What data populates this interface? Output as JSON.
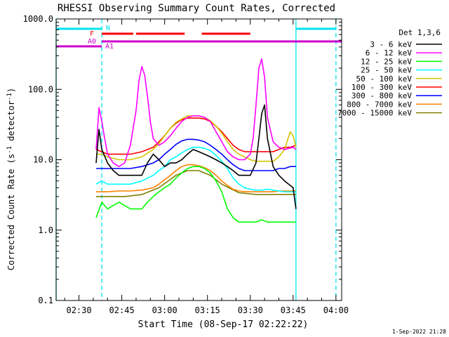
{
  "chart_data": {
    "type": "line",
    "title": "RHESSI Observing Summary Count Rates, Corrected",
    "xlabel": "Start Time (08-Sep-17 02:22:22)",
    "ylabel": "Corrected Count Rate (s",
    "ylabel_sup1": "-1",
    "ylabel_mid": " detector",
    "ylabel_sup2": "-1",
    "ylabel_end": ")",
    "y_scale": "log",
    "ylim": [
      0.1,
      1000
    ],
    "xlim_minutes": [
      142,
      242
    ],
    "x_ticks": [
      {
        "label": "02:30",
        "minute": 150
      },
      {
        "label": "02:45",
        "minute": 165
      },
      {
        "label": "03:00",
        "minute": 180
      },
      {
        "label": "03:15",
        "minute": 195
      },
      {
        "label": "03:30",
        "minute": 210
      },
      {
        "label": "03:45",
        "minute": 225
      },
      {
        "label": "04:00",
        "minute": 240
      }
    ],
    "y_ticks": [
      {
        "label": "0.1",
        "value": 0.1
      },
      {
        "label": "1.0",
        "value": 1
      },
      {
        "label": "10.0",
        "value": 10
      },
      {
        "label": "100.0",
        "value": 100
      },
      {
        "label": "1000.0",
        "value": 1000
      }
    ],
    "legend_title": "Det 1,3,6",
    "footer": "1-Sep-2022 21:28",
    "series": [
      {
        "name": "3 - 6 keV",
        "color": "#000000",
        "x": [
          156,
          157,
          158,
          160,
          162,
          164,
          166,
          168,
          170,
          172,
          174,
          176,
          178,
          180,
          182,
          184,
          186,
          188,
          190,
          192,
          194,
          196,
          198,
          200,
          202,
          204,
          206,
          208,
          210,
          212,
          213,
          214,
          215,
          216,
          218,
          220,
          222,
          225,
          226
        ],
        "y": [
          9,
          27,
          14,
          9,
          7,
          6,
          6,
          6,
          6,
          6,
          9,
          12,
          10,
          8,
          9,
          9,
          10,
          12,
          14,
          13,
          12,
          11,
          10,
          9,
          8,
          7,
          6,
          6,
          6,
          9,
          20,
          45,
          60,
          20,
          8,
          6,
          5,
          4,
          2
        ]
      },
      {
        "name": "6 - 12 keV",
        "color": "#ff00ff",
        "x": [
          156,
          157,
          158,
          159,
          160,
          162,
          164,
          166,
          168,
          170,
          171,
          172,
          173,
          174,
          175,
          176,
          178,
          180,
          182,
          184,
          186,
          188,
          190,
          192,
          194,
          196,
          198,
          200,
          202,
          204,
          206,
          208,
          210,
          211,
          212,
          213,
          214,
          215,
          216,
          218,
          220,
          222,
          225,
          226
        ],
        "y": [
          14,
          55,
          35,
          20,
          12,
          9,
          8,
          9,
          16,
          50,
          130,
          210,
          160,
          80,
          35,
          20,
          16,
          18,
          22,
          28,
          35,
          40,
          42,
          42,
          40,
          35,
          25,
          18,
          13,
          11,
          10,
          10,
          12,
          20,
          60,
          200,
          270,
          150,
          40,
          18,
          15,
          14,
          15,
          14
        ]
      },
      {
        "name": "12 - 25 keV",
        "color": "#00ff00",
        "x": [
          156,
          158,
          160,
          164,
          168,
          170,
          172,
          174,
          176,
          178,
          180,
          182,
          184,
          186,
          188,
          190,
          192,
          194,
          196,
          198,
          200,
          202,
          204,
          206,
          208,
          210,
          212,
          214,
          216,
          218,
          220,
          222,
          226
        ],
        "y": [
          1.5,
          2.5,
          2,
          2.5,
          2,
          2,
          2,
          2.5,
          3,
          3.5,
          4,
          4.5,
          5.5,
          6.5,
          7.5,
          8,
          8,
          7.5,
          6.5,
          5,
          3.5,
          2,
          1.5,
          1.3,
          1.3,
          1.3,
          1.3,
          1.4,
          1.3,
          1.3,
          1.3,
          1.3,
          1.3
        ]
      },
      {
        "name": "25 - 50 keV",
        "color": "#00ffff",
        "x": [
          156,
          158,
          160,
          164,
          168,
          172,
          176,
          178,
          180,
          182,
          184,
          186,
          188,
          190,
          192,
          194,
          196,
          198,
          200,
          202,
          204,
          206,
          208,
          210,
          212,
          214,
          216,
          218,
          220,
          222,
          226
        ],
        "y": [
          4.5,
          5,
          4.5,
          4.5,
          4.5,
          5,
          6,
          7,
          8,
          10,
          11,
          12.5,
          14,
          15,
          15,
          14.5,
          13.5,
          11.5,
          9.5,
          7.5,
          5.5,
          4.5,
          4,
          3.8,
          3.7,
          3.7,
          3.8,
          3.7,
          3.6,
          3.5,
          3.5
        ]
      },
      {
        "name": "50 - 100 keV",
        "color": "#d4c400",
        "x": [
          156,
          158,
          160,
          164,
          168,
          172,
          176,
          178,
          180,
          182,
          184,
          186,
          188,
          190,
          192,
          194,
          196,
          198,
          200,
          202,
          204,
          206,
          208,
          210,
          212,
          214,
          216,
          218,
          220,
          222,
          224,
          225,
          226
        ],
        "y": [
          12,
          12,
          11,
          10,
          10,
          11,
          14,
          17,
          22,
          28,
          34,
          38,
          42,
          42,
          42,
          40,
          36,
          30,
          24,
          18,
          14,
          12,
          11,
          10,
          9.5,
          9.5,
          9.5,
          9.5,
          11,
          14,
          25,
          22,
          15
        ]
      },
      {
        "name": "100 - 300 keV",
        "color": "#ff0000",
        "x": [
          156,
          158,
          160,
          164,
          168,
          172,
          176,
          178,
          180,
          182,
          184,
          186,
          188,
          190,
          192,
          194,
          196,
          198,
          200,
          202,
          204,
          206,
          208,
          210,
          212,
          214,
          216,
          218,
          220,
          222,
          224,
          226
        ],
        "y": [
          14,
          13,
          12,
          12,
          12,
          13,
          15,
          18,
          22,
          28,
          33,
          37,
          39,
          39,
          39,
          38,
          35,
          30,
          25,
          20,
          16,
          14,
          13,
          13,
          13,
          13,
          13,
          13,
          14,
          15,
          15,
          16
        ]
      },
      {
        "name": "300 - 800 keV",
        "color": "#0000ff",
        "x": [
          156,
          158,
          160,
          164,
          168,
          172,
          176,
          178,
          180,
          182,
          184,
          186,
          188,
          190,
          192,
          194,
          196,
          198,
          200,
          202,
          204,
          206,
          208,
          210,
          212,
          214,
          216,
          218,
          220,
          222,
          224,
          226
        ],
        "y": [
          7.5,
          7.5,
          7.5,
          7.5,
          7.5,
          8,
          9,
          10,
          12,
          14,
          16.5,
          18.5,
          19.5,
          19.5,
          19,
          18,
          16,
          14,
          12,
          10,
          8.5,
          7.5,
          7,
          7,
          7,
          7,
          7,
          7,
          7.5,
          7.5,
          8,
          8
        ]
      },
      {
        "name": "800 - 7000 keV",
        "color": "#ff8000",
        "x": [
          156,
          158,
          160,
          164,
          168,
          172,
          176,
          178,
          180,
          182,
          184,
          186,
          188,
          190,
          192,
          194,
          196,
          198,
          200,
          202,
          204,
          206,
          208,
          210,
          212,
          214,
          216,
          218,
          220,
          222,
          224,
          226
        ],
        "y": [
          3.5,
          3.5,
          3.5,
          3.6,
          3.6,
          3.7,
          4,
          4.5,
          5.2,
          6,
          7,
          8,
          8.5,
          8.5,
          8.2,
          7.7,
          7,
          6,
          5,
          4.3,
          3.8,
          3.6,
          3.5,
          3.5,
          3.5,
          3.5,
          3.5,
          3.5,
          3.6,
          3.6,
          3.6,
          3.6
        ]
      },
      {
        "name": "7000 - 15000 keV",
        "color": "#808000",
        "x": [
          156,
          160,
          166,
          172,
          178,
          184,
          188,
          192,
          196,
          200,
          206,
          212,
          218,
          224,
          226
        ],
        "y": [
          3,
          3,
          3,
          3.2,
          4,
          6,
          7,
          7,
          6,
          4.5,
          3.4,
          3.2,
          3.2,
          3.2,
          3.2
        ]
      }
    ],
    "annotations": {
      "A0": {
        "label": "A0",
        "color": "#cc00cc"
      },
      "A1": {
        "label": "A1",
        "color": "#cc00cc"
      },
      "F": {
        "label": "F",
        "color": "#ff0000"
      },
      "N": {
        "label": "N",
        "color": "#00e5ee"
      }
    },
    "bars": {
      "night": [
        [
          142,
          158
        ],
        [
          226,
          240
        ]
      ],
      "flare": [
        [
          158,
          169
        ],
        [
          170,
          187
        ],
        [
          193,
          210
        ]
      ],
      "attenuator_A0": [
        142,
        158
      ],
      "attenuator_A1": [
        158,
        242
      ]
    },
    "vlines": [
      {
        "minute": 142,
        "style": "solid",
        "color": "#00e5ee"
      },
      {
        "minute": 158,
        "style": "dashed",
        "color": "#00e5ee"
      },
      {
        "minute": 226,
        "style": "solid",
        "color": "#00e5ee"
      },
      {
        "minute": 240,
        "style": "dashed",
        "color": "#00e5ee"
      }
    ]
  }
}
